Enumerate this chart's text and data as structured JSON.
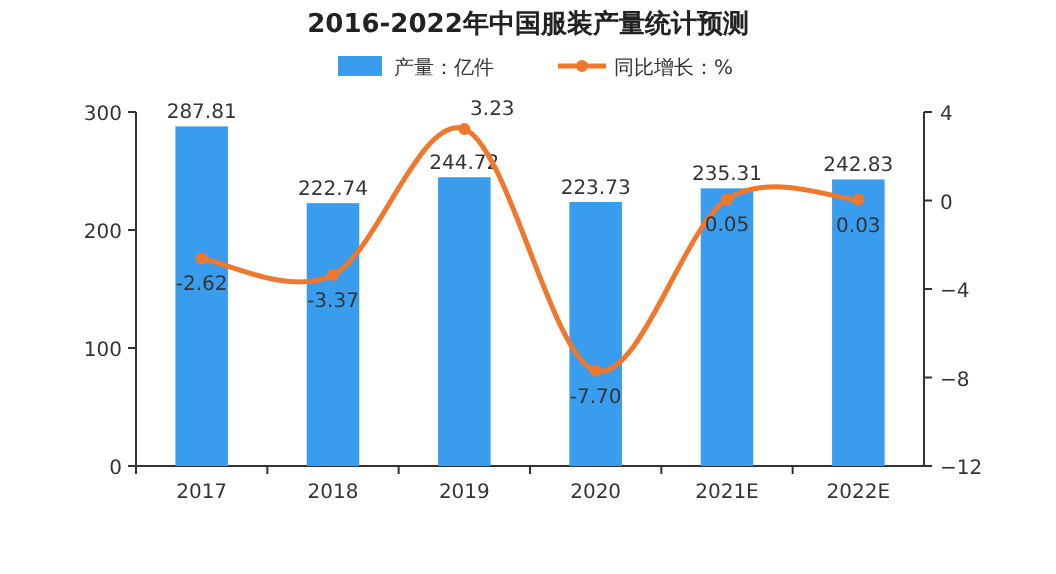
{
  "chart_data": {
    "type": "bar",
    "title": "2016-2022年中国服装产量统计预测",
    "categories": [
      "2017",
      "2018",
      "2019",
      "2020",
      "2021E",
      "2022E"
    ],
    "series": [
      {
        "name": "产量：亿件",
        "color": "#3a9ced",
        "values": [
          287.81,
          222.74,
          244.72,
          223.73,
          235.31,
          242.83
        ]
      },
      {
        "name": "同比增长：%",
        "type": "line",
        "axis": "y2",
        "color": "#f0782d",
        "values": [
          -2.62,
          -3.37,
          3.23,
          -7.7,
          0.05,
          0.03
        ],
        "value_labels": [
          "-2.62",
          "-3.37",
          "3.23",
          "-7.70",
          "0.05",
          "0.03"
        ]
      }
    ],
    "ylim": [
      0,
      300
    ],
    "yticks": [
      0,
      100,
      200,
      300
    ],
    "y2lim": [
      -12,
      4
    ],
    "y2ticks": [
      -12,
      -8,
      -4,
      0,
      4
    ],
    "data_labels": true,
    "legend": "top",
    "marker": "circle",
    "grid": false
  }
}
